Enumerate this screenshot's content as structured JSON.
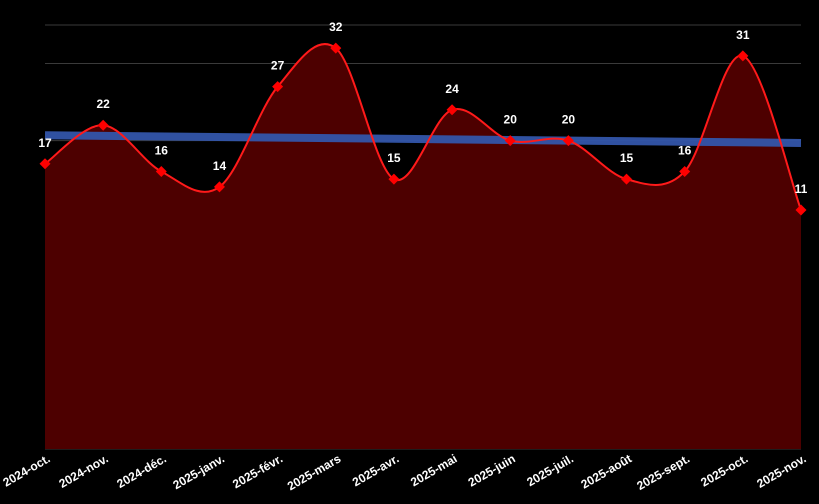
{
  "chart_data": {
    "type": "area",
    "title": "",
    "xlabel": "",
    "ylabel": "",
    "categories": [
      "2024-oct.",
      "2024-nov.",
      "2024-déc.",
      "2025-janv.",
      "2025-févr.",
      "2025-mars",
      "2025-avr.",
      "2025-mai",
      "2025-juin",
      "2025-juil.",
      "2025-août",
      "2025-sept.",
      "2025-oct.",
      "2025-nov."
    ],
    "values": [
      17,
      22,
      16,
      14,
      27,
      32,
      15,
      24,
      20,
      20,
      15,
      16,
      31,
      11
    ],
    "data_labels": [
      "17",
      "22",
      "16",
      "14",
      "27",
      "32",
      "15",
      "24",
      "20",
      "20",
      "15",
      "16",
      "31",
      "11"
    ],
    "trendline": {
      "type": "linear",
      "start": 20.7,
      "end": 19.7
    },
    "ylim": [
      -20,
      35
    ],
    "grid": true,
    "y_tick_labels_shown": false,
    "legend": "none",
    "colors": {
      "background": "#000000",
      "area_fill": "#4d0000",
      "line": "#ff1a1a",
      "marker": "#ff0000",
      "trendline": "#3355aa",
      "grid": "#3a3a3a",
      "text": "#ffffff"
    }
  }
}
